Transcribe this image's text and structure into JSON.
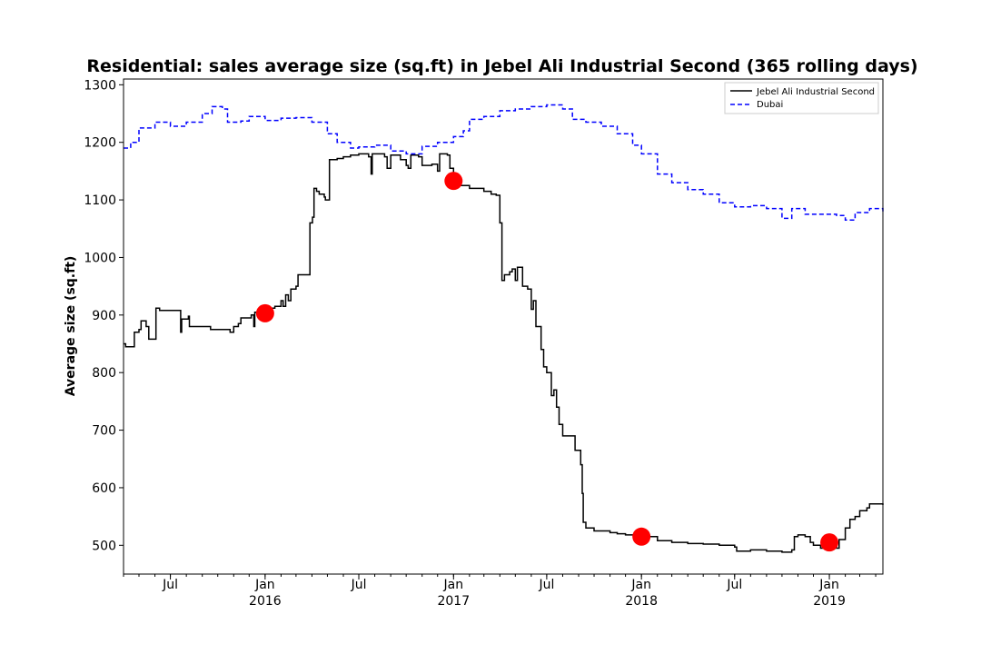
{
  "chart_data": {
    "type": "line",
    "title": "Residential: sales average size (sq.ft) in Jebel Ali Industrial Second (365 rolling days)",
    "xlabel": "",
    "ylabel": "Average size (sq.ft)",
    "ylim": [
      1270,
      50
    ],
    "xlim": [
      "2015-04-01",
      "2019-04-15"
    ],
    "grid": false,
    "legend_position": "top-right",
    "y_ticks": [
      500,
      600,
      700,
      800,
      900,
      1000,
      1100,
      1200,
      1300
    ],
    "x_ticks": [
      {
        "date": "2015-07-01",
        "label": "Jul",
        "sublabel": ""
      },
      {
        "date": "2016-01-01",
        "label": "Jan",
        "sublabel": "2016"
      },
      {
        "date": "2016-07-01",
        "label": "Jul",
        "sublabel": ""
      },
      {
        "date": "2017-01-01",
        "label": "Jan",
        "sublabel": "2017"
      },
      {
        "date": "2017-07-01",
        "label": "Jul",
        "sublabel": ""
      },
      {
        "date": "2018-01-01",
        "label": "Jan",
        "sublabel": "2018"
      },
      {
        "date": "2018-07-01",
        "label": "Jul",
        "sublabel": ""
      },
      {
        "date": "2019-01-01",
        "label": "Jan",
        "sublabel": "2019"
      }
    ],
    "series": [
      {
        "name": "Jebel Ali Industrial Second",
        "color": "#000000",
        "style": "solid",
        "points": [
          [
            "2015-04-01",
            850
          ],
          [
            "2015-04-05",
            845
          ],
          [
            "2015-04-20",
            845
          ],
          [
            "2015-04-22",
            870
          ],
          [
            "2015-05-01",
            875
          ],
          [
            "2015-05-05",
            890
          ],
          [
            "2015-05-15",
            880
          ],
          [
            "2015-05-20",
            858
          ],
          [
            "2015-06-01",
            858
          ],
          [
            "2015-06-03",
            912
          ],
          [
            "2015-06-10",
            908
          ],
          [
            "2015-07-20",
            908
          ],
          [
            "2015-07-21",
            870
          ],
          [
            "2015-07-23",
            893
          ],
          [
            "2015-08-05",
            898
          ],
          [
            "2015-08-07",
            880
          ],
          [
            "2015-09-15",
            880
          ],
          [
            "2015-09-17",
            875
          ],
          [
            "2015-10-20",
            875
          ],
          [
            "2015-10-25",
            870
          ],
          [
            "2015-11-01",
            880
          ],
          [
            "2015-11-10",
            885
          ],
          [
            "2015-11-15",
            895
          ],
          [
            "2015-12-05",
            900
          ],
          [
            "2015-12-10",
            880
          ],
          [
            "2015-12-12",
            905
          ],
          [
            "2016-01-01",
            903
          ],
          [
            "2016-01-10",
            912
          ],
          [
            "2016-01-20",
            915
          ],
          [
            "2016-02-01",
            925
          ],
          [
            "2016-02-05",
            915
          ],
          [
            "2016-02-10",
            935
          ],
          [
            "2016-02-15",
            925
          ],
          [
            "2016-02-20",
            945
          ],
          [
            "2016-03-01",
            950
          ],
          [
            "2016-03-05",
            970
          ],
          [
            "2016-03-25",
            970
          ],
          [
            "2016-03-28",
            1060
          ],
          [
            "2016-04-02",
            1070
          ],
          [
            "2016-04-05",
            1120
          ],
          [
            "2016-04-10",
            1115
          ],
          [
            "2016-04-15",
            1110
          ],
          [
            "2016-04-25",
            1105
          ],
          [
            "2016-04-27",
            1100
          ],
          [
            "2016-05-05",
            1170
          ],
          [
            "2016-05-20",
            1172
          ],
          [
            "2016-06-01",
            1175
          ],
          [
            "2016-06-15",
            1178
          ],
          [
            "2016-07-01",
            1180
          ],
          [
            "2016-07-20",
            1175
          ],
          [
            "2016-07-25",
            1145
          ],
          [
            "2016-07-27",
            1180
          ],
          [
            "2016-08-20",
            1175
          ],
          [
            "2016-08-25",
            1155
          ],
          [
            "2016-09-01",
            1178
          ],
          [
            "2016-09-20",
            1170
          ],
          [
            "2016-10-01",
            1160
          ],
          [
            "2016-10-05",
            1155
          ],
          [
            "2016-10-10",
            1178
          ],
          [
            "2016-10-25",
            1175
          ],
          [
            "2016-11-01",
            1160
          ],
          [
            "2016-11-20",
            1162
          ],
          [
            "2016-12-01",
            1150
          ],
          [
            "2016-12-05",
            1180
          ],
          [
            "2016-12-20",
            1178
          ],
          [
            "2016-12-25",
            1155
          ],
          [
            "2017-01-01",
            1133
          ],
          [
            "2017-01-15",
            1125
          ],
          [
            "2017-02-01",
            1120
          ],
          [
            "2017-02-15",
            1120
          ],
          [
            "2017-03-01",
            1115
          ],
          [
            "2017-03-15",
            1110
          ],
          [
            "2017-03-25",
            1108
          ],
          [
            "2017-04-01",
            1060
          ],
          [
            "2017-04-05",
            960
          ],
          [
            "2017-04-10",
            970
          ],
          [
            "2017-04-20",
            975
          ],
          [
            "2017-04-25",
            980
          ],
          [
            "2017-05-01",
            960
          ],
          [
            "2017-05-05",
            983
          ],
          [
            "2017-05-15",
            950
          ],
          [
            "2017-05-25",
            945
          ],
          [
            "2017-06-01",
            910
          ],
          [
            "2017-06-05",
            925
          ],
          [
            "2017-06-10",
            880
          ],
          [
            "2017-06-20",
            840
          ],
          [
            "2017-06-25",
            810
          ],
          [
            "2017-07-01",
            800
          ],
          [
            "2017-07-10",
            760
          ],
          [
            "2017-07-15",
            770
          ],
          [
            "2017-07-20",
            740
          ],
          [
            "2017-07-25",
            710
          ],
          [
            "2017-08-01",
            690
          ],
          [
            "2017-08-20",
            690
          ],
          [
            "2017-08-25",
            665
          ],
          [
            "2017-09-05",
            640
          ],
          [
            "2017-09-08",
            590
          ],
          [
            "2017-09-10",
            540
          ],
          [
            "2017-09-15",
            530
          ],
          [
            "2017-09-25",
            530
          ],
          [
            "2017-10-01",
            525
          ],
          [
            "2017-10-15",
            525
          ],
          [
            "2017-11-01",
            522
          ],
          [
            "2017-11-15",
            520
          ],
          [
            "2017-12-01",
            518
          ],
          [
            "2018-01-01",
            515
          ],
          [
            "2018-02-01",
            508
          ],
          [
            "2018-03-01",
            505
          ],
          [
            "2018-04-01",
            503
          ],
          [
            "2018-05-01",
            502
          ],
          [
            "2018-06-01",
            500
          ],
          [
            "2018-07-01",
            497
          ],
          [
            "2018-07-05",
            490
          ],
          [
            "2018-08-01",
            492
          ],
          [
            "2018-09-01",
            490
          ],
          [
            "2018-10-01",
            488
          ],
          [
            "2018-10-20",
            492
          ],
          [
            "2018-10-25",
            515
          ],
          [
            "2018-11-01",
            518
          ],
          [
            "2018-11-15",
            515
          ],
          [
            "2018-11-25",
            505
          ],
          [
            "2018-12-01",
            500
          ],
          [
            "2018-12-15",
            495
          ],
          [
            "2019-01-01",
            505
          ],
          [
            "2019-01-10",
            500
          ],
          [
            "2019-01-15",
            495
          ],
          [
            "2019-01-20",
            510
          ],
          [
            "2019-02-01",
            530
          ],
          [
            "2019-02-10",
            545
          ],
          [
            "2019-02-20",
            550
          ],
          [
            "2019-03-01",
            560
          ],
          [
            "2019-03-15",
            565
          ],
          [
            "2019-03-20",
            572
          ],
          [
            "2019-04-15",
            570
          ]
        ]
      },
      {
        "name": "Dubai",
        "color": "#0000ff",
        "style": "dashed",
        "points": [
          [
            "2015-04-01",
            1190
          ],
          [
            "2015-04-15",
            1200
          ],
          [
            "2015-05-01",
            1225
          ],
          [
            "2015-06-01",
            1235
          ],
          [
            "2015-07-01",
            1228
          ],
          [
            "2015-08-01",
            1235
          ],
          [
            "2015-09-01",
            1250
          ],
          [
            "2015-09-20",
            1262
          ],
          [
            "2015-10-10",
            1258
          ],
          [
            "2015-10-20",
            1235
          ],
          [
            "2015-11-15",
            1237
          ],
          [
            "2015-12-01",
            1245
          ],
          [
            "2016-01-01",
            1238
          ],
          [
            "2016-02-01",
            1242
          ],
          [
            "2016-03-01",
            1243
          ],
          [
            "2016-04-01",
            1235
          ],
          [
            "2016-05-01",
            1215
          ],
          [
            "2016-05-20",
            1200
          ],
          [
            "2016-06-15",
            1190
          ],
          [
            "2016-07-01",
            1192
          ],
          [
            "2016-08-01",
            1195
          ],
          [
            "2016-09-01",
            1185
          ],
          [
            "2016-10-01",
            1180
          ],
          [
            "2016-11-01",
            1193
          ],
          [
            "2016-12-01",
            1200
          ],
          [
            "2017-01-01",
            1210
          ],
          [
            "2017-01-20",
            1220
          ],
          [
            "2017-02-01",
            1240
          ],
          [
            "2017-03-01",
            1245
          ],
          [
            "2017-04-01",
            1255
          ],
          [
            "2017-05-01",
            1258
          ],
          [
            "2017-06-01",
            1262
          ],
          [
            "2017-07-01",
            1265
          ],
          [
            "2017-08-01",
            1258
          ],
          [
            "2017-08-20",
            1240
          ],
          [
            "2017-09-15",
            1235
          ],
          [
            "2017-10-15",
            1228
          ],
          [
            "2017-11-15",
            1215
          ],
          [
            "2017-12-15",
            1195
          ],
          [
            "2018-01-01",
            1180
          ],
          [
            "2018-02-01",
            1145
          ],
          [
            "2018-03-01",
            1130
          ],
          [
            "2018-04-01",
            1118
          ],
          [
            "2018-05-01",
            1110
          ],
          [
            "2018-06-01",
            1095
          ],
          [
            "2018-07-01",
            1088
          ],
          [
            "2018-08-01",
            1090
          ],
          [
            "2018-09-01",
            1085
          ],
          [
            "2018-10-01",
            1068
          ],
          [
            "2018-10-20",
            1085
          ],
          [
            "2018-11-15",
            1075
          ],
          [
            "2018-12-15",
            1075
          ],
          [
            "2019-01-15",
            1073
          ],
          [
            "2019-02-01",
            1065
          ],
          [
            "2019-02-20",
            1078
          ],
          [
            "2019-03-20",
            1085
          ],
          [
            "2019-04-15",
            1080
          ]
        ]
      }
    ],
    "markers": [
      {
        "date": "2016-01-01",
        "value": 903
      },
      {
        "date": "2017-01-01",
        "value": 1133
      },
      {
        "date": "2018-01-01",
        "value": 515
      },
      {
        "date": "2019-01-01",
        "value": 505
      }
    ],
    "marker_color": "#ff0000"
  }
}
